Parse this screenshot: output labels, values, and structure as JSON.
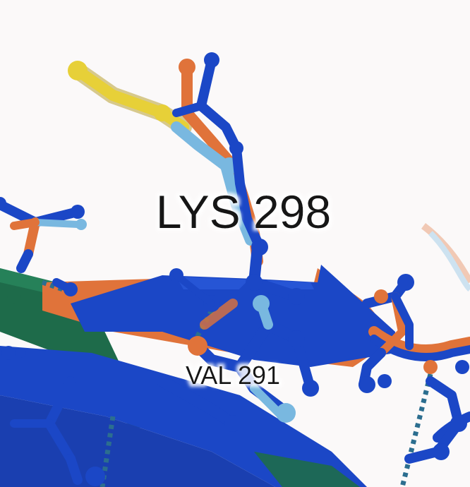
{
  "viewer": {
    "background_color": "#fbf9f9",
    "colors": {
      "blue": "#1b47c6",
      "blue_dark": "#0f2f9a",
      "orange": "#e0733a",
      "green": "#1e6b4a",
      "light_blue": "#79b8e0",
      "yellow": "#e7d038",
      "hbond": "#2c6e8f"
    },
    "labels": {
      "residue_main": "LYS 298",
      "residue_secondary": "VAL 291"
    }
  }
}
